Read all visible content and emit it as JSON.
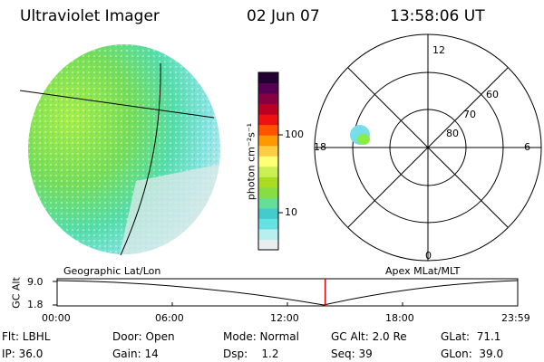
{
  "header": {
    "instrument": "Ultraviolet Imager",
    "date": "02 Jun 07",
    "time": "13:58:06 UT"
  },
  "colorbar": {
    "label": "photon cm⁻²s⁻¹",
    "ticks": [
      "100",
      "10"
    ],
    "scale": "log",
    "colors": [
      "#e8eef0",
      "#b8eef0",
      "#66e0e0",
      "#44cccc",
      "#66dd99",
      "#88dd44",
      "#aadd22",
      "#ccee55",
      "#ffff77",
      "#ffcc44",
      "#ff9900",
      "#ff5500",
      "#ee1111",
      "#bb0022",
      "#880044",
      "#550055",
      "#220033"
    ]
  },
  "globe": {
    "label": "Geographic Lat/Lon",
    "colors": [
      "#a8ee44",
      "#66dd66",
      "#55ddaa",
      "#77e0e0",
      "#d8eeee"
    ]
  },
  "polar": {
    "label": "Apex MLat/MLT",
    "mlt_labels": [
      "12",
      "18",
      "6",
      "0"
    ],
    "mlat_labels": [
      "60",
      "70",
      "80"
    ],
    "spot_colors": [
      "#66ddee",
      "#88ee44"
    ]
  },
  "alt_plot": {
    "ylabel": "GC Alt",
    "yticks": [
      "9.0",
      "1.8"
    ],
    "xticks": [
      "00:00",
      "06:00",
      "12:00",
      "18:00",
      "23:59"
    ],
    "marker_time_hours": 13.97,
    "marker_color": "#dd0000"
  },
  "info": {
    "flt": "Flt: LBHL",
    "ip": "IP: 36.0",
    "door": "Door: Open",
    "gain": "Gain: 14",
    "mode": "Mode: Normal",
    "dsp": "Dsp:    1.2",
    "gcalt": "GC Alt: 2.0 Re",
    "seq": "Seq: 39",
    "glat": "GLat:  71.1",
    "glon": "GLon:  39.0"
  }
}
